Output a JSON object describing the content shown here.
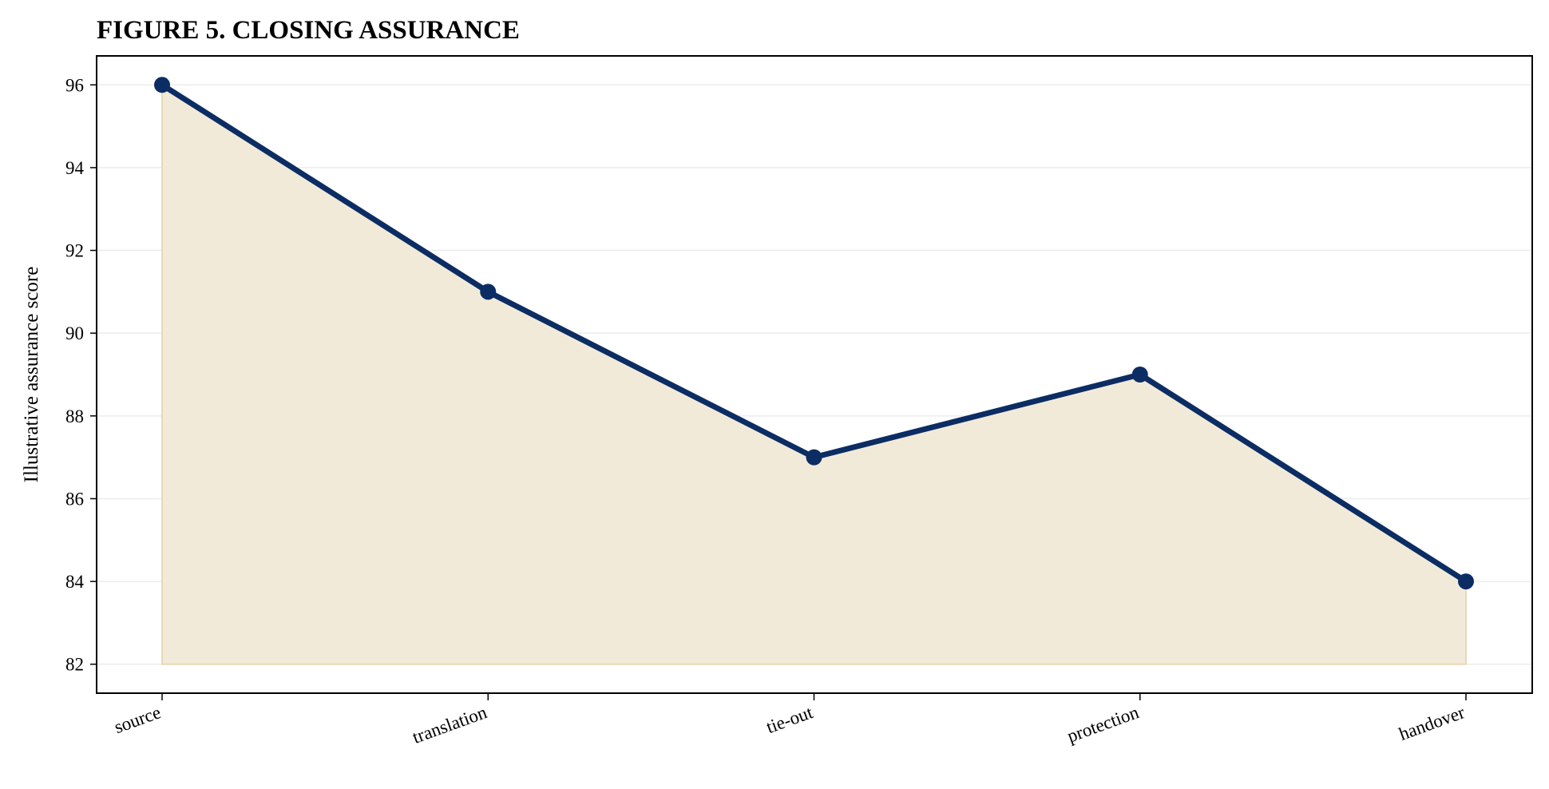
{
  "chart_data": {
    "type": "area",
    "title": "FIGURE 5. CLOSING ASSURANCE",
    "xlabel": "",
    "ylabel": "Illustrative assurance score",
    "categories": [
      "source",
      "translation",
      "tie-out",
      "protection",
      "handover"
    ],
    "values": [
      96,
      91,
      87,
      89,
      84
    ],
    "fill_baseline": 82,
    "ylim": [
      81.3,
      96.7
    ],
    "yticks": [
      82,
      84,
      86,
      88,
      90,
      92,
      94,
      96
    ],
    "grid": true,
    "legend": "none",
    "colors": {
      "line": "#0c2d63",
      "marker": "#0c2d63",
      "fill": "#f2ead9",
      "fill_edge": "#e8d9b5",
      "grid": "#ececec",
      "axis": "#000000"
    }
  }
}
